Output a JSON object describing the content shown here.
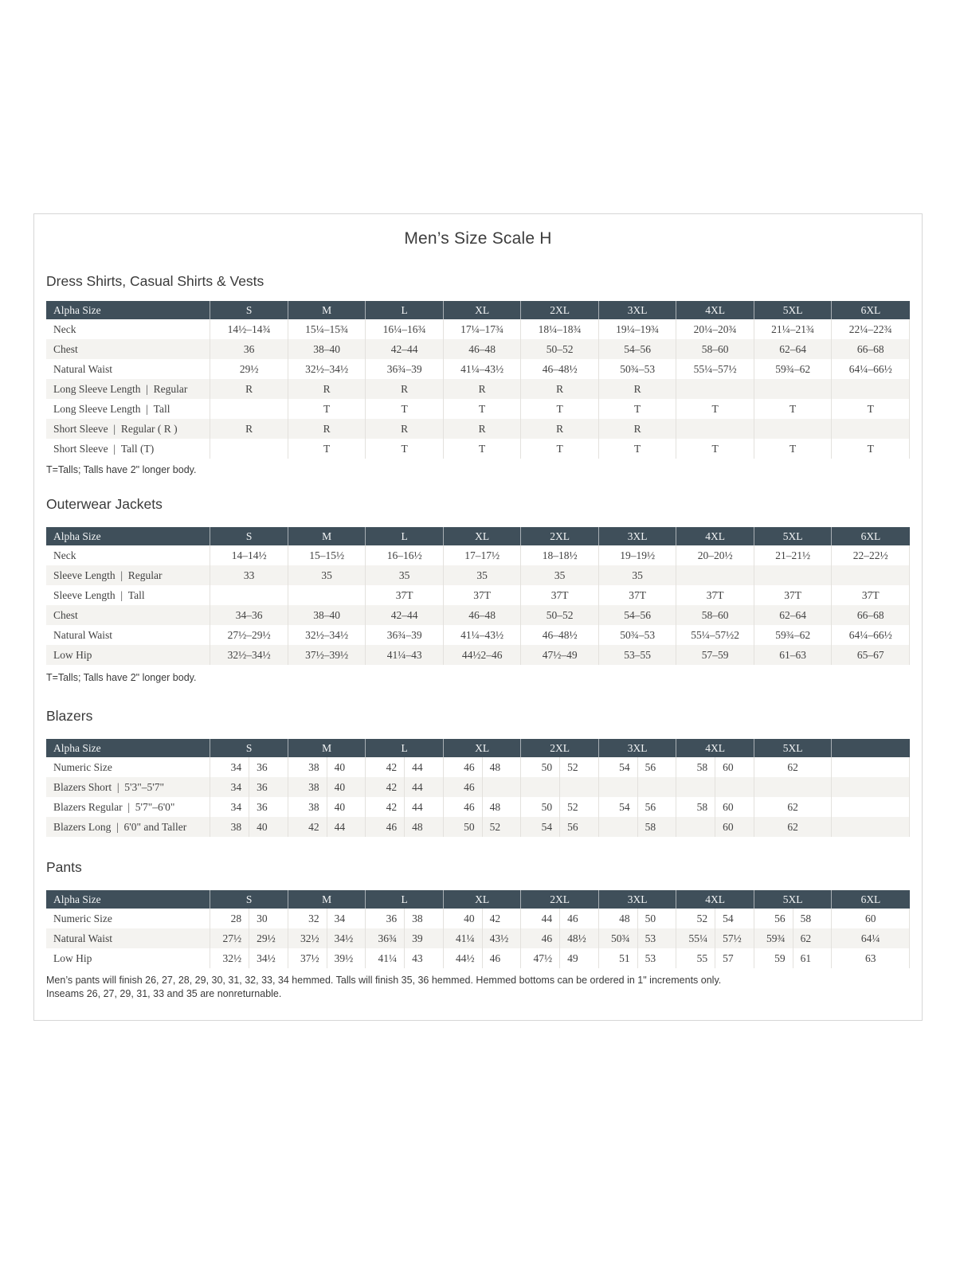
{
  "page": {
    "title": "Men’s Size Scale H"
  },
  "colors": {
    "header_bg": "#3f4f5a",
    "header_text": "#f3f5f6",
    "stripe": "#f4f3f0",
    "line": "#e3e1dd"
  },
  "sections": [
    {
      "heading": "Dress Shirts, Casual Shirts & Vests",
      "type": "simple",
      "columns": [
        "Alpha Size",
        "S",
        "M",
        "L",
        "XL",
        "2XL",
        "3XL",
        "4XL",
        "5XL",
        "6XL"
      ],
      "rows": [
        {
          "label": "Neck",
          "cells": [
            "14½–14¾",
            "15¼–15¾",
            "16¼–16¾",
            "17¼–17¾",
            "18¼–18¾",
            "19¼–19¾",
            "20¼–20¾",
            "21¼–21¾",
            "22¼–22¾"
          ]
        },
        {
          "label": "Chest",
          "cells": [
            "36",
            "38–40",
            "42–44",
            "46–48",
            "50–52",
            "54–56",
            "58–60",
            "62–64",
            "66–68"
          ]
        },
        {
          "label": "Natural Waist",
          "cells": [
            "29½",
            "32½–34½",
            "36¾–39",
            "41¼–43½",
            "46–48½",
            "50¾–53",
            "55¼–57½",
            "59¾–62",
            "64¼–66½"
          ]
        },
        {
          "label": "Long Sleeve Length | Regular",
          "cells": [
            "R",
            "R",
            "R",
            "R",
            "R",
            "R",
            "",
            "",
            ""
          ]
        },
        {
          "label": "Long Sleeve Length | Tall",
          "cells": [
            "",
            "T",
            "T",
            "T",
            "T",
            "T",
            "T",
            "T",
            "T"
          ]
        },
        {
          "label": "Short Sleeve | Regular ( R )",
          "cells": [
            "R",
            "R",
            "R",
            "R",
            "R",
            "R",
            "",
            "",
            ""
          ]
        },
        {
          "label": "Short Sleeve | Tall (T)",
          "cells": [
            "",
            "T",
            "T",
            "T",
            "T",
            "T",
            "T",
            "T",
            "T"
          ]
        }
      ],
      "footnote": "T=Talls; Talls have 2\" longer body."
    },
    {
      "heading": "Outerwear Jackets",
      "type": "simple",
      "columns": [
        "Alpha Size",
        "S",
        "M",
        "L",
        "XL",
        "2XL",
        "3XL",
        "4XL",
        "5XL",
        "6XL"
      ],
      "rows": [
        {
          "label": "Neck",
          "cells": [
            "14–14½",
            "15–15½",
            "16–16½",
            "17–17½",
            "18–18½",
            "19–19½",
            "20–20½",
            "21–21½",
            "22–22½"
          ]
        },
        {
          "label": "Sleeve Length | Regular",
          "cells": [
            "33",
            "35",
            "35",
            "35",
            "35",
            "35",
            "",
            "",
            ""
          ]
        },
        {
          "label": "Sleeve Length | Tall",
          "cells": [
            "",
            "",
            "37T",
            "37T",
            "37T",
            "37T",
            "37T",
            "37T",
            "37T"
          ]
        },
        {
          "label": "Chest",
          "cells": [
            "34–36",
            "38–40",
            "42–44",
            "46–48",
            "50–52",
            "54–56",
            "58–60",
            "62–64",
            "66–68"
          ]
        },
        {
          "label": "Natural Waist",
          "cells": [
            "27½–29½",
            "32½–34½",
            "36¾–39",
            "41¼–43½",
            "46–48½",
            "50¾–53",
            "55¼–57½2",
            "59¾–62",
            "64¼–66½"
          ]
        },
        {
          "label": "Low Hip",
          "cells": [
            "32½–34½",
            "37½–39½",
            "41¼–43",
            "44½2–46",
            "47½–49",
            "53–55",
            "57–59",
            "61–63",
            "65–67"
          ]
        }
      ],
      "footnote": "T=Talls; Talls have 2\" longer body."
    },
    {
      "heading": "Blazers",
      "type": "split",
      "columns": [
        "Alpha Size",
        "S",
        "M",
        "L",
        "XL",
        "2XL",
        "3XL",
        "4XL",
        "5XL",
        ""
      ],
      "rows": [
        {
          "label": "Numeric Size",
          "cells": [
            [
              "34",
              "36"
            ],
            [
              "38",
              "40"
            ],
            [
              "42",
              "44"
            ],
            [
              "46",
              "48"
            ],
            [
              "50",
              "52"
            ],
            [
              "54",
              "56"
            ],
            [
              "58",
              "60"
            ],
            [
              "62"
            ],
            []
          ]
        },
        {
          "label": "Blazers Short | 5'3\"–5'7\"",
          "cells": [
            [
              "34",
              "36"
            ],
            [
              "38",
              "40"
            ],
            [
              "42",
              "44"
            ],
            [
              "46",
              ""
            ],
            [
              "",
              ""
            ],
            [
              "",
              ""
            ],
            [
              "",
              ""
            ],
            [],
            []
          ]
        },
        {
          "label": "Blazers Regular | 5'7\"–6'0\"",
          "cells": [
            [
              "34",
              "36"
            ],
            [
              "38",
              "40"
            ],
            [
              "42",
              "44"
            ],
            [
              "46",
              "48"
            ],
            [
              "50",
              "52"
            ],
            [
              "54",
              "56"
            ],
            [
              "58",
              "60"
            ],
            [
              "62"
            ],
            []
          ]
        },
        {
          "label": "Blazers Long | 6'0\" and Taller",
          "cells": [
            [
              "38",
              "40"
            ],
            [
              "42",
              "44"
            ],
            [
              "46",
              "48"
            ],
            [
              "50",
              "52"
            ],
            [
              "54",
              "56"
            ],
            [
              "",
              "58"
            ],
            [
              "",
              "60"
            ],
            [
              "62"
            ],
            []
          ]
        }
      ]
    },
    {
      "heading": "Pants",
      "type": "split",
      "columns": [
        "Alpha Size",
        "S",
        "M",
        "L",
        "XL",
        "2XL",
        "3XL",
        "4XL",
        "5XL",
        "6XL"
      ],
      "rows": [
        {
          "label": "Numeric Size",
          "cells": [
            [
              "28",
              "30"
            ],
            [
              "32",
              "34"
            ],
            [
              "36",
              "38"
            ],
            [
              "40",
              "42"
            ],
            [
              "44",
              "46"
            ],
            [
              "48",
              "50"
            ],
            [
              "52",
              "54"
            ],
            [
              "56",
              "58"
            ],
            [
              "60"
            ]
          ]
        },
        {
          "label": "Natural Waist",
          "cells": [
            [
              "27½",
              "29½"
            ],
            [
              "32½",
              "34½"
            ],
            [
              "36¾",
              "39"
            ],
            [
              "41¼",
              "43½"
            ],
            [
              "46",
              "48½"
            ],
            [
              "50¾",
              "53"
            ],
            [
              "55¼",
              "57½"
            ],
            [
              "59¾",
              "62"
            ],
            [
              "64¼"
            ]
          ]
        },
        {
          "label": "Low Hip",
          "cells": [
            [
              "32½",
              "34½"
            ],
            [
              "37½",
              "39½"
            ],
            [
              "41¼",
              "43"
            ],
            [
              "44½",
              "46"
            ],
            [
              "47½",
              "49"
            ],
            [
              "51",
              "53"
            ],
            [
              "55",
              "57"
            ],
            [
              "59",
              "61"
            ],
            [
              "63"
            ]
          ]
        }
      ],
      "footnotes": [
        "Men’s pants will finish 26, 27, 28, 29, 30, 31, 32, 33, 34 hemmed. Talls will finish 35, 36 hemmed. Hemmed bottoms can be ordered in 1\" increments only.",
        "Inseams 26, 27, 29, 31, 33 and 35 are nonreturnable."
      ]
    }
  ]
}
